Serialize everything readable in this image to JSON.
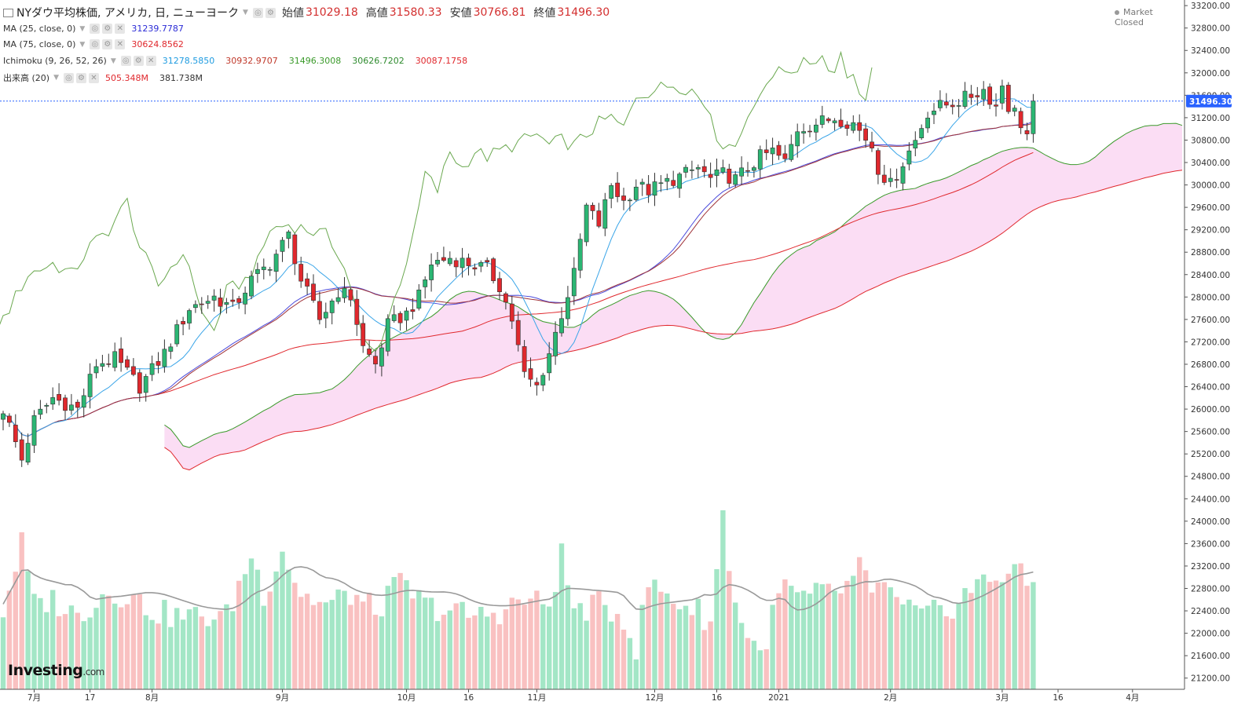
{
  "header": {
    "symbol": "NYダウ平均株価, アメリカ, 日, ニューヨーク",
    "open_label": "始値",
    "open": "31029.18",
    "high_label": "高値",
    "high": "31580.33",
    "low_label": "安値",
    "low": "30766.81",
    "close_label": "終値",
    "close": "31496.30",
    "market_status": "Market Closed"
  },
  "indicators": [
    {
      "label": "MA (25, close, 0)",
      "values": [
        {
          "v": "31239.7787",
          "color": "#2b2bd6"
        }
      ]
    },
    {
      "label": "MA (75, close, 0)",
      "values": [
        {
          "v": "30624.8562",
          "color": "#e0282d"
        }
      ]
    },
    {
      "label": "Ichimoku (9, 26, 52, 26)",
      "values": [
        {
          "v": "31278.5850",
          "color": "#1e9be0"
        },
        {
          "v": "30932.9707",
          "color": "#c0392b"
        },
        {
          "v": "31496.3008",
          "color": "#3a9a2a"
        },
        {
          "v": "30626.7202",
          "color": "#2e8b2e"
        },
        {
          "v": "30087.1758",
          "color": "#e0282d"
        }
      ]
    },
    {
      "label": "出来高 (20)",
      "values": [
        {
          "v": "505.348M",
          "color": "#e0282d"
        },
        {
          "v": "381.738M",
          "color": "#333333"
        }
      ]
    }
  ],
  "logo": {
    "brand": "Investing",
    "suffix": ".com"
  },
  "colors": {
    "up": "#2bb673",
    "down": "#e0282d",
    "cloud": "#fbd9f3",
    "price_line": "#2962ff"
  },
  "chart_data": {
    "type": "candlestick",
    "ylim": [
      21000,
      33300
    ],
    "y_ticks": [
      21200,
      21600,
      22000,
      22400,
      22800,
      23200,
      23600,
      24000,
      24400,
      24800,
      25200,
      25600,
      26000,
      26400,
      26800,
      27200,
      27600,
      28000,
      28400,
      28800,
      29200,
      29600,
      30000,
      30400,
      30800,
      31200,
      31600,
      32000,
      32400,
      32800,
      33200
    ],
    "last_price": "31496.30",
    "x_ticks": [
      {
        "label": "7月",
        "i": 5
      },
      {
        "label": "17",
        "i": 14
      },
      {
        "label": "8月",
        "i": 24
      },
      {
        "label": "9月",
        "i": 45
      },
      {
        "label": "10月",
        "i": 65
      },
      {
        "label": "16",
        "i": 75
      },
      {
        "label": "11月",
        "i": 86
      },
      {
        "label": "12月",
        "i": 105
      },
      {
        "label": "16",
        "i": 115
      },
      {
        "label": "2021",
        "i": 125
      },
      {
        "label": "2月",
        "i": 143
      },
      {
        "label": "3月",
        "i": 161
      },
      {
        "label": "16",
        "i": 170
      },
      {
        "label": "4月",
        "i": 182
      }
    ],
    "price_path": [
      [
        0,
        26000
      ],
      [
        3,
        25100
      ],
      [
        5,
        25800
      ],
      [
        8,
        26200
      ],
      [
        12,
        26000
      ],
      [
        15,
        26800
      ],
      [
        18,
        26900
      ],
      [
        22,
        26400
      ],
      [
        26,
        27000
      ],
      [
        30,
        27800
      ],
      [
        34,
        28000
      ],
      [
        37,
        27800
      ],
      [
        40,
        28300
      ],
      [
        43,
        28600
      ],
      [
        46,
        29100
      ],
      [
        48,
        28300
      ],
      [
        51,
        27600
      ],
      [
        54,
        28100
      ],
      [
        56,
        28000
      ],
      [
        58,
        27100
      ],
      [
        60,
        26800
      ],
      [
        62,
        27500
      ],
      [
        65,
        27700
      ],
      [
        67,
        28000
      ],
      [
        69,
        28600
      ],
      [
        72,
        28700
      ],
      [
        75,
        28600
      ],
      [
        78,
        28500
      ],
      [
        80,
        28200
      ],
      [
        82,
        27600
      ],
      [
        84,
        26600
      ],
      [
        86,
        26400
      ],
      [
        88,
        27000
      ],
      [
        90,
        27700
      ],
      [
        92,
        28400
      ],
      [
        94,
        29600
      ],
      [
        96,
        29300
      ],
      [
        98,
        30000
      ],
      [
        100,
        29700
      ],
      [
        102,
        30000
      ],
      [
        104,
        29900
      ],
      [
        106,
        30000
      ],
      [
        108,
        30100
      ],
      [
        110,
        30200
      ],
      [
        112,
        30300
      ],
      [
        114,
        30100
      ],
      [
        116,
        30200
      ],
      [
        118,
        30100
      ],
      [
        120,
        30300
      ],
      [
        122,
        30500
      ],
      [
        124,
        30600
      ],
      [
        126,
        30400
      ],
      [
        128,
        31000
      ],
      [
        131,
        31100
      ],
      [
        134,
        31200
      ],
      [
        137,
        31100
      ],
      [
        140,
        30700
      ],
      [
        141,
        30300
      ],
      [
        143,
        30000
      ],
      [
        145,
        30400
      ],
      [
        147,
        30800
      ],
      [
        149,
        31300
      ],
      [
        151,
        31400
      ],
      [
        154,
        31500
      ],
      [
        156,
        31600
      ],
      [
        158,
        31700
      ],
      [
        160,
        31400
      ],
      [
        161,
        31800
      ],
      [
        162,
        31400
      ],
      [
        163,
        31300
      ],
      [
        165,
        30900
      ],
      [
        166,
        31500
      ]
    ],
    "volume_path": [
      [
        0,
        22400
      ],
      [
        3,
        23600
      ],
      [
        5,
        22500
      ],
      [
        8,
        22600
      ],
      [
        12,
        22300
      ],
      [
        16,
        22700
      ],
      [
        20,
        22700
      ],
      [
        24,
        22400
      ],
      [
        28,
        22300
      ],
      [
        32,
        22300
      ],
      [
        36,
        22300
      ],
      [
        40,
        23400
      ],
      [
        42,
        22700
      ],
      [
        45,
        23500
      ],
      [
        48,
        22700
      ],
      [
        52,
        22500
      ],
      [
        56,
        22700
      ],
      [
        60,
        22400
      ],
      [
        64,
        22900
      ],
      [
        68,
        22500
      ],
      [
        72,
        22400
      ],
      [
        76,
        22300
      ],
      [
        80,
        22400
      ],
      [
        84,
        22600
      ],
      [
        88,
        22500
      ],
      [
        90,
        23400
      ],
      [
        92,
        22400
      ],
      [
        96,
        22500
      ],
      [
        100,
        22300
      ],
      [
        102,
        21700
      ],
      [
        104,
        22900
      ],
      [
        108,
        22600
      ],
      [
        112,
        22400
      ],
      [
        114,
        22200
      ],
      [
        116,
        24100
      ],
      [
        118,
        22500
      ],
      [
        120,
        22000
      ],
      [
        122,
        21600
      ],
      [
        124,
        22300
      ],
      [
        126,
        22900
      ],
      [
        128,
        22600
      ],
      [
        132,
        22700
      ],
      [
        136,
        22800
      ],
      [
        138,
        23200
      ],
      [
        140,
        22600
      ],
      [
        142,
        23000
      ],
      [
        144,
        22500
      ],
      [
        148,
        22300
      ],
      [
        152,
        22400
      ],
      [
        156,
        22800
      ],
      [
        160,
        23000
      ],
      [
        163,
        23200
      ],
      [
        165,
        22800
      ],
      [
        166,
        23000
      ]
    ]
  }
}
